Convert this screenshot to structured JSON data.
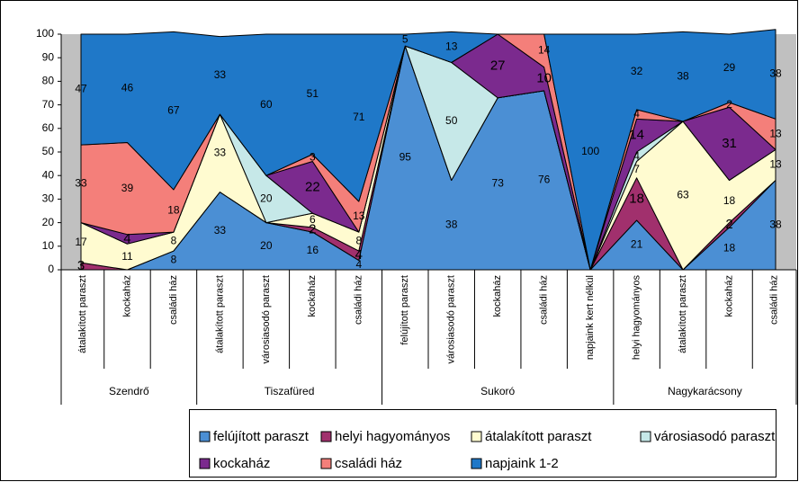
{
  "chart_data": {
    "type": "stacked-area",
    "categories": [
      "átalakított paraszt",
      "kockaház",
      "családi ház",
      "átalakított paraszt",
      "városiasodó paraszt",
      "kockaház",
      "családi ház",
      "felújított paraszt",
      "városiasodó paraszt",
      "kockaház",
      "családi ház",
      "napjaink kert nélkül",
      "helyi hagyományos",
      "átalakított paraszt",
      "kockaház",
      "családi ház"
    ],
    "groups": [
      {
        "label": "Szendrő",
        "span": 3
      },
      {
        "label": "Tiszafüred",
        "span": 4
      },
      {
        "label": "Sukoró",
        "span": 5
      },
      {
        "label": "Nagykarácsony",
        "span": 4
      }
    ],
    "series": [
      {
        "name": "felújított paraszt",
        "color": "#4b8fd4",
        "values": [
          0,
          0,
          8,
          33,
          20,
          16,
          4,
          95,
          38,
          73,
          76,
          0,
          21,
          0,
          18,
          38
        ]
      },
      {
        "name": "helyi hagyományos",
        "color": "#a1306d",
        "values": [
          3,
          0,
          0,
          0,
          0,
          2,
          4,
          0,
          0,
          0,
          0,
          0,
          18,
          0,
          2,
          0
        ]
      },
      {
        "name": "átalakított paraszt",
        "color": "#fffbd0",
        "values": [
          17,
          11,
          8,
          33,
          0,
          6,
          8,
          0,
          0,
          0,
          0,
          0,
          7,
          63,
          18,
          13
        ]
      },
      {
        "name": "városiasodó paraszt",
        "color": "#c6e8e8",
        "values": [
          0,
          0,
          0,
          0,
          20,
          0,
          0,
          0,
          50,
          0,
          0,
          0,
          4,
          0,
          0,
          0
        ]
      },
      {
        "name": "kockaház",
        "color": "#7b2a8e",
        "values": [
          0,
          4,
          0,
          0,
          0,
          22,
          0,
          0,
          0,
          27,
          10,
          0,
          14,
          0,
          31,
          0
        ]
      },
      {
        "name": "családi ház",
        "color": "#f47f7a",
        "values": [
          33,
          39,
          18,
          0,
          0,
          3,
          13,
          0,
          0,
          0,
          14,
          0,
          4,
          0,
          2,
          13
        ]
      },
      {
        "name": "napjaink 1-2",
        "color": "#1f78c8",
        "values": [
          47,
          46,
          67,
          33,
          60,
          51,
          71,
          5,
          13,
          0,
          0,
          100,
          32,
          38,
          29,
          38
        ]
      }
    ],
    "ylim": [
      0,
      100
    ],
    "yticks": [
      0,
      10,
      20,
      30,
      40,
      50,
      60,
      70,
      80,
      90,
      100
    ],
    "legend": "bottom"
  }
}
